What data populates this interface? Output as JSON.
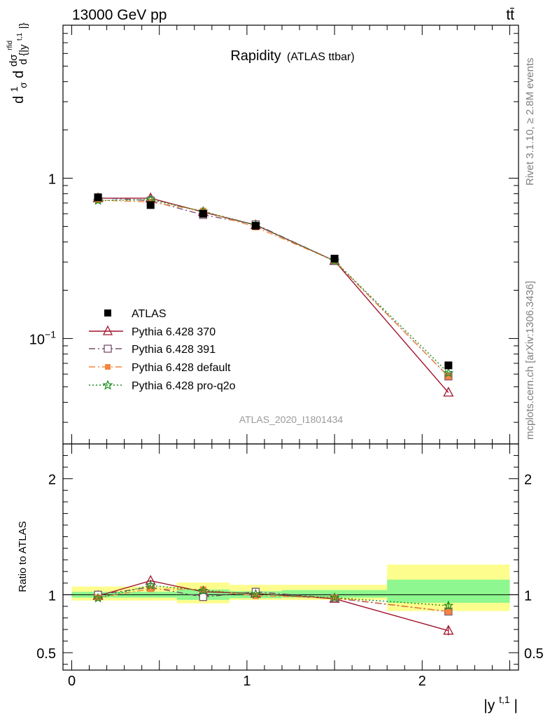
{
  "header": {
    "energy_label": "13000 GeV pp",
    "process_label": "tt̄"
  },
  "side_texts": {
    "rivet": "Rivet 3.1.10, ≥ 2.8M events",
    "mcplots": "mcplots.cern.ch [arXiv:1306.3436]"
  },
  "chart_data": [
    {
      "type": "line",
      "panel": "main",
      "title": "Rapidity",
      "subtitle": "(ATLAS ttbar)",
      "ylabel_parts": {
        "a": "d",
        "b": "1",
        "c": "σ",
        "d": "d",
        "e": "dσ",
        "f": "rfid",
        "g": "d {|y",
        "h": "t,1",
        "i": "|}"
      },
      "y_scale": "log",
      "ylim": [
        0.022,
        9.0
      ],
      "xlim": [
        -0.05,
        2.55
      ],
      "y_ticks": [
        {
          "value": 0.1,
          "base": "10",
          "exp": "−1"
        },
        {
          "value": 1,
          "base": "1",
          "exp": ""
        }
      ],
      "analysis_id": "ATLAS_2020_I1801434",
      "legend_position": "lower-left",
      "x": [
        0.15,
        0.45,
        0.75,
        1.05,
        1.5,
        2.15
      ],
      "x_bins": [
        [
          0.0,
          0.3
        ],
        [
          0.3,
          0.6
        ],
        [
          0.6,
          0.9
        ],
        [
          0.9,
          1.2
        ],
        [
          1.2,
          1.8
        ],
        [
          1.8,
          2.5
        ]
      ],
      "series": [
        {
          "name": "ATLAS",
          "role": "data",
          "color": "#000000",
          "marker": "square-filled",
          "values": [
            0.76,
            0.68,
            0.6,
            0.505,
            0.315,
            0.068
          ]
        },
        {
          "name": "Pythia 6.428 370",
          "color": "#a0142d",
          "marker": "triangle-open",
          "dash": "",
          "values": [
            0.75,
            0.75,
            0.615,
            0.51,
            0.305,
            0.046
          ]
        },
        {
          "name": "Pythia 6.428 391",
          "color": "#7a4f6d",
          "marker": "square-open",
          "dash": "9 4 2 4",
          "values": [
            0.755,
            0.725,
            0.59,
            0.515,
            0.305,
            0.058
          ]
        },
        {
          "name": "Pythia 6.428 default",
          "color": "#f5853e",
          "marker": "square-filled",
          "dash": "9 4 2 4",
          "values": [
            0.73,
            0.71,
            0.625,
            0.495,
            0.305,
            0.058
          ]
        },
        {
          "name": "Pythia 6.428 pro-q2o",
          "color": "#1b8c1b",
          "marker": "star",
          "dash": "2 3",
          "values": [
            0.725,
            0.735,
            0.62,
            0.51,
            0.305,
            0.061
          ]
        }
      ]
    },
    {
      "type": "line",
      "panel": "ratio",
      "ylabel": "Ratio to ATLAS",
      "xlabel": {
        "base": "|y",
        "sup": "t,1",
        "close": "|"
      },
      "y_scale": "linear",
      "ylim": [
        0.35,
        2.3
      ],
      "xlim": [
        -0.05,
        2.55
      ],
      "y_ticks": [
        0.5,
        1,
        2
      ],
      "x_ticks": [
        0,
        1,
        2
      ],
      "reference": 1,
      "bands": [
        {
          "x0": 0.0,
          "x1": 0.3,
          "inner": [
            0.975,
            1.025
          ],
          "outer": [
            0.95,
            1.07
          ]
        },
        {
          "x0": 0.3,
          "x1": 0.6,
          "inner": [
            0.975,
            1.025
          ],
          "outer": [
            0.95,
            1.07
          ]
        },
        {
          "x0": 0.6,
          "x1": 0.9,
          "inner": [
            0.955,
            1.045
          ],
          "outer": [
            0.925,
            1.105
          ]
        },
        {
          "x0": 0.9,
          "x1": 1.2,
          "inner": [
            0.97,
            1.03
          ],
          "outer": [
            0.955,
            1.085
          ]
        },
        {
          "x0": 1.2,
          "x1": 1.8,
          "inner": [
            0.975,
            1.04
          ],
          "outer": [
            0.955,
            1.085
          ]
        },
        {
          "x0": 1.8,
          "x1": 2.5,
          "inner": [
            0.93,
            1.13
          ],
          "outer": [
            0.86,
            1.26
          ]
        }
      ],
      "series": [
        {
          "name": "Pythia 6.428 370",
          "values": [
            0.99,
            1.12,
            1.025,
            1.01,
            0.965,
            0.69
          ],
          "err": [
            0.01,
            0.01,
            0.01,
            0.01,
            0.012,
            0.04
          ]
        },
        {
          "name": "Pythia 6.428 391",
          "values": [
            1.0,
            1.065,
            0.98,
            1.025,
            0.97,
            0.855
          ],
          "err": [
            0.01,
            0.01,
            0.01,
            0.01,
            0.012,
            0.03
          ]
        },
        {
          "name": "Pythia 6.428 default",
          "values": [
            0.975,
            1.05,
            1.045,
            0.99,
            0.975,
            0.855
          ],
          "err": [
            0.015,
            0.015,
            0.015,
            0.015,
            0.015,
            0.03
          ]
        },
        {
          "name": "Pythia 6.428 pro-q2o",
          "values": [
            0.97,
            1.08,
            1.035,
            1.005,
            0.975,
            0.905
          ],
          "err": [
            0.01,
            0.01,
            0.01,
            0.01,
            0.012,
            0.03
          ]
        }
      ]
    }
  ]
}
